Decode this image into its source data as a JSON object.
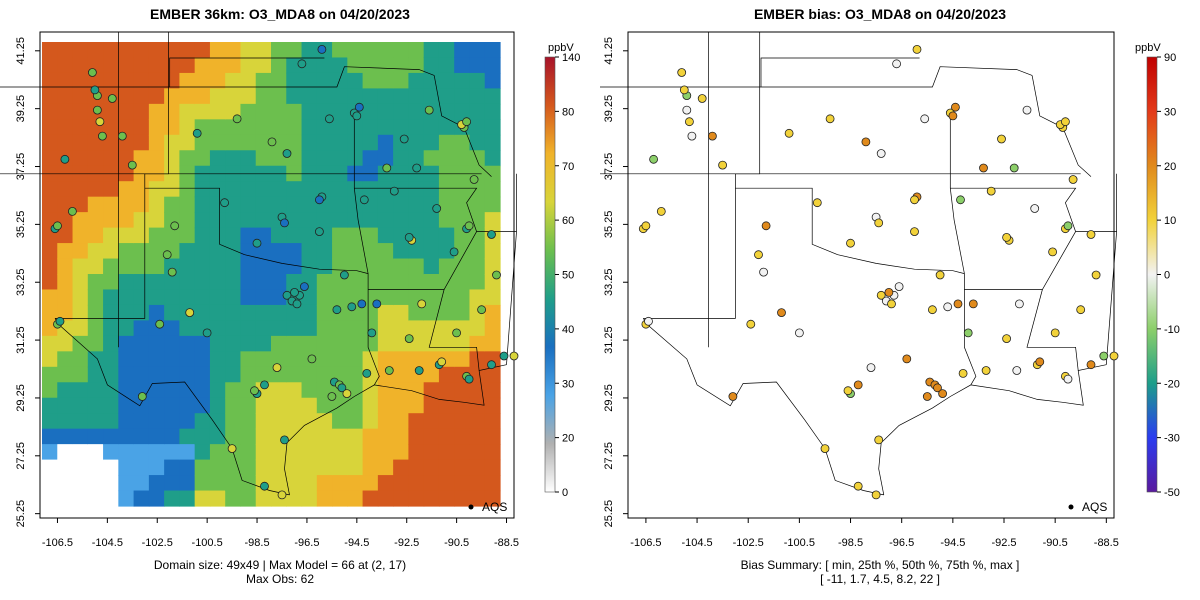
{
  "left_panel": {
    "title": "EMBER 36km: O3_MDA8 on 04/20/2023",
    "legend_label": "AQS",
    "colorbar_unit": "ppbV",
    "colorbar_ticks": [
      "0",
      "20",
      "30",
      "40",
      "50",
      "60",
      "70",
      "80",
      "140"
    ],
    "caption_line1": "Domain size: 49x49 | Max Model = 66 at (2, 17)",
    "caption_line2": "Max Obs: 62"
  },
  "right_panel": {
    "title": "EMBER bias: O3_MDA8 on 04/20/2023",
    "legend_label": "AQS",
    "colorbar_unit": "ppbV",
    "colorbar_ticks": [
      "-50",
      "-30",
      "-20",
      "-10",
      "0",
      "10",
      "20",
      "30",
      "90"
    ],
    "caption_line1": "Bias Summary: [ min, 25th %, 50th %, 75th %, max ]",
    "caption_line2": "[ -11,   1.7,   4.5,   8.2,   22 ]"
  },
  "axes": {
    "x_ticks": [
      "-106.5",
      "-104.5",
      "-102.5",
      "-100.5",
      "-98.5",
      "-96.5",
      "-94.5",
      "-92.5",
      "-90.5",
      "-88.5"
    ],
    "x_values": [
      -106.5,
      -104.5,
      -102.5,
      -100.5,
      -98.5,
      -96.5,
      -94.5,
      -92.5,
      -90.5,
      -88.5
    ],
    "y_ticks": [
      "25.25",
      "27.25",
      "29.25",
      "31.25",
      "33.25",
      "35.25",
      "37.25",
      "39.25",
      "41.25"
    ],
    "y_values": [
      25.25,
      27.25,
      29.25,
      31.25,
      33.25,
      35.25,
      37.25,
      39.25,
      41.25
    ],
    "lon_range": [
      -107.2,
      -88.2
    ],
    "lat_range": [
      25.1,
      41.9
    ]
  },
  "colors": {
    "model_scale": [
      "#ffffff",
      "#b0b0b0",
      "#4aa3e6",
      "#1a6fc0",
      "#1f9e89",
      "#6cbf4e",
      "#d8d43a",
      "#f0b32a",
      "#d4581d",
      "#a8132a"
    ],
    "bias_scale": [
      "#5a1a9e",
      "#2a3cf0",
      "#1d9e8a",
      "#8ccf6a",
      "#f2f2f2",
      "#f2d23a",
      "#e08a1c",
      "#e33a1a",
      "#c00000"
    ],
    "borders": "#000000"
  }
}
